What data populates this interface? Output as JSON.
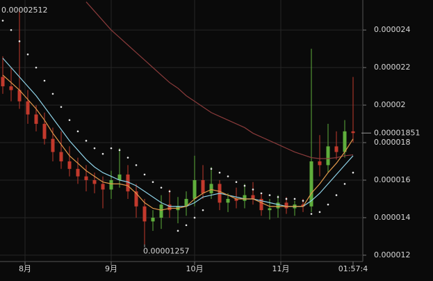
{
  "chart_data": {
    "type": "candlestick",
    "x": [
      1,
      4,
      7,
      10,
      13,
      16,
      19,
      22,
      25,
      28,
      31,
      34,
      37,
      40,
      43,
      46,
      49,
      52,
      55,
      58,
      61,
      64,
      67,
      70,
      73,
      76,
      79,
      82,
      85,
      88,
      91,
      94,
      97,
      100,
      103,
      106,
      109,
      112,
      115,
      118,
      121,
      124,
      127
    ],
    "xlim": [
      0,
      130
    ],
    "xticks": [
      {
        "value": 9,
        "label": "8月"
      },
      {
        "value": 40,
        "label": "9月"
      },
      {
        "value": 70,
        "label": "10月"
      },
      {
        "value": 101,
        "label": "11月"
      },
      {
        "value": 127,
        "label": "01:57:4"
      }
    ],
    "ylim": [
      1.17e-05,
      2.56e-05
    ],
    "yticks": [
      1.2e-05,
      1.4e-05,
      1.6e-05,
      1.8e-05,
      2e-05,
      2.2e-05,
      2.4e-05
    ],
    "grid": true,
    "up_color": "#5fae3c",
    "down_color": "#c2392c",
    "candles": {
      "open": [
        2.15e-05,
        2.1e-05,
        2.08e-05,
        2.02e-05,
        1.95e-05,
        1.9e-05,
        1.82e-05,
        1.75e-05,
        1.7e-05,
        1.66e-05,
        1.62e-05,
        1.6e-05,
        1.58e-05,
        1.55e-05,
        1.6e-05,
        1.63e-05,
        1.54e-05,
        1.46e-05,
        1.38e-05,
        1.4e-05,
        1.47e-05,
        1.44e-05,
        1.46e-05,
        1.5e-05,
        1.6e-05,
        1.53e-05,
        1.58e-05,
        1.48e-05,
        1.5e-05,
        1.49e-05,
        1.52e-05,
        1.5e-05,
        1.44e-05,
        1.45e-05,
        1.48e-05,
        1.45e-05,
        1.47e-05,
        1.46e-05,
        1.7e-05,
        1.68e-05,
        1.78e-05,
        1.75e-05,
        1.86e-05
      ],
      "high": [
        2.26e-05,
        2.2e-05,
        2.512e-05,
        2.08e-05,
        2e-05,
        1.96e-05,
        1.88e-05,
        1.86e-05,
        1.78e-05,
        1.72e-05,
        1.68e-05,
        1.64e-05,
        1.62e-05,
        1.65e-05,
        1.77e-05,
        1.68e-05,
        1.58e-05,
        1.5e-05,
        1.44e-05,
        1.52e-05,
        1.55e-05,
        1.51e-05,
        1.54e-05,
        1.73e-05,
        1.68e-05,
        1.67e-05,
        1.6e-05,
        1.53e-05,
        1.56e-05,
        1.58e-05,
        1.59e-05,
        1.53e-05,
        1.5e-05,
        1.52e-05,
        1.51e-05,
        1.49e-05,
        1.5e-05,
        2.3e-05,
        1.84e-05,
        1.9e-05,
        1.86e-05,
        1.92e-05,
        2.15e-05
      ],
      "low": [
        2.06e-05,
        2.02e-05,
        1.98e-05,
        1.9e-05,
        1.86e-05,
        1.79e-05,
        1.7e-05,
        1.66e-05,
        1.62e-05,
        1.58e-05,
        1.54e-05,
        1.53e-05,
        1.45e-05,
        1.5e-05,
        1.56e-05,
        1.5e-05,
        1.4e-05,
        1.257e-05,
        1.33e-05,
        1.34e-05,
        1.4e-05,
        1.37e-05,
        1.41e-05,
        1.46e-05,
        1.5e-05,
        1.5e-05,
        1.44e-05,
        1.43e-05,
        1.45e-05,
        1.45e-05,
        1.47e-05,
        1.41e-05,
        1.39e-05,
        1.4e-05,
        1.42e-05,
        1.41e-05,
        1.43e-05,
        1.43e-05,
        1.62e-05,
        1.64e-05,
        1.71e-05,
        1.72e-05,
        1.8e-05
      ],
      "close": [
        2.1e-05,
        2.08e-05,
        2.02e-05,
        1.95e-05,
        1.9e-05,
        1.82e-05,
        1.75e-05,
        1.7e-05,
        1.66e-05,
        1.62e-05,
        1.6e-05,
        1.58e-05,
        1.55e-05,
        1.6e-05,
        1.63e-05,
        1.54e-05,
        1.46e-05,
        1.38e-05,
        1.4e-05,
        1.47e-05,
        1.44e-05,
        1.46e-05,
        1.5e-05,
        1.6e-05,
        1.53e-05,
        1.58e-05,
        1.48e-05,
        1.5e-05,
        1.49e-05,
        1.52e-05,
        1.5e-05,
        1.44e-05,
        1.45e-05,
        1.48e-05,
        1.45e-05,
        1.47e-05,
        1.46e-05,
        1.7e-05,
        1.68e-05,
        1.78e-05,
        1.75e-05,
        1.86e-05,
        1.851e-05
      ]
    },
    "overlays": [
      {
        "style": "line",
        "color": "#8a3b3b",
        "values": [
          null,
          null,
          null,
          null,
          null,
          null,
          null,
          null,
          null,
          null,
          2.55e-05,
          2.5e-05,
          2.45e-05,
          2.4e-05,
          2.36e-05,
          2.32e-05,
          2.28e-05,
          2.24e-05,
          2.2e-05,
          2.16e-05,
          2.12e-05,
          2.09e-05,
          2.05e-05,
          2.02e-05,
          1.99e-05,
          1.96e-05,
          1.94e-05,
          1.92e-05,
          1.9e-05,
          1.88e-05,
          1.85e-05,
          1.83e-05,
          1.81e-05,
          1.79e-05,
          1.77e-05,
          1.75e-05,
          1.735e-05,
          1.72e-05,
          1.715e-05,
          1.715e-05,
          1.72e-05,
          1.73e-05,
          1.735e-05
        ]
      },
      {
        "style": "line",
        "color": "#8fd3e8",
        "values": [
          2.25e-05,
          2.2e-05,
          2.15e-05,
          2.1e-05,
          2.05e-05,
          1.99e-05,
          1.93e-05,
          1.87e-05,
          1.81e-05,
          1.76e-05,
          1.71e-05,
          1.67e-05,
          1.64e-05,
          1.62e-05,
          1.6e-05,
          1.59e-05,
          1.57e-05,
          1.54e-05,
          1.51e-05,
          1.48e-05,
          1.46e-05,
          1.46e-05,
          1.46e-05,
          1.48e-05,
          1.51e-05,
          1.52e-05,
          1.53e-05,
          1.52e-05,
          1.51e-05,
          1.5e-05,
          1.5e-05,
          1.49e-05,
          1.48e-05,
          1.47e-05,
          1.46e-05,
          1.46e-05,
          1.46e-05,
          1.49e-05,
          1.53e-05,
          1.58e-05,
          1.63e-05,
          1.68e-05,
          1.73e-05
        ]
      },
      {
        "style": "line",
        "color": "#e39a4c",
        "values": [
          2.16e-05,
          2.12e-05,
          2.08e-05,
          2.03e-05,
          1.98e-05,
          1.92e-05,
          1.85e-05,
          1.79e-05,
          1.73e-05,
          1.69e-05,
          1.65e-05,
          1.62e-05,
          1.59e-05,
          1.58e-05,
          1.58e-05,
          1.57e-05,
          1.53e-05,
          1.48e-05,
          1.45e-05,
          1.44e-05,
          1.45e-05,
          1.45e-05,
          1.46e-05,
          1.5e-05,
          1.53e-05,
          1.55e-05,
          1.54e-05,
          1.52e-05,
          1.5e-05,
          1.5e-05,
          1.5e-05,
          1.48e-05,
          1.46e-05,
          1.46e-05,
          1.46e-05,
          1.46e-05,
          1.46e-05,
          1.53e-05,
          1.58e-05,
          1.64e-05,
          1.69e-05,
          1.75e-05,
          1.82e-05
        ]
      },
      {
        "style": "dots",
        "color": "#e6e6e6",
        "values": [
          2.45e-05,
          2.4e-05,
          2.34e-05,
          2.27e-05,
          2.2e-05,
          2.13e-05,
          2.06e-05,
          1.99e-05,
          1.92e-05,
          1.86e-05,
          1.81e-05,
          1.77e-05,
          1.74e-05,
          1.77e-05,
          1.76e-05,
          1.72e-05,
          1.68e-05,
          1.63e-05,
          1.59e-05,
          1.56e-05,
          1.54e-05,
          1.33e-05,
          1.36e-05,
          1.4e-05,
          1.44e-05,
          1.66e-05,
          1.64e-05,
          1.62e-05,
          1.59e-05,
          1.57e-05,
          1.55e-05,
          1.53e-05,
          1.52e-05,
          1.51e-05,
          1.5e-05,
          1.5e-05,
          1.49e-05,
          1.42e-05,
          1.43e-05,
          1.47e-05,
          1.52e-05,
          1.58e-05,
          1.64e-05
        ]
      }
    ]
  }
}
